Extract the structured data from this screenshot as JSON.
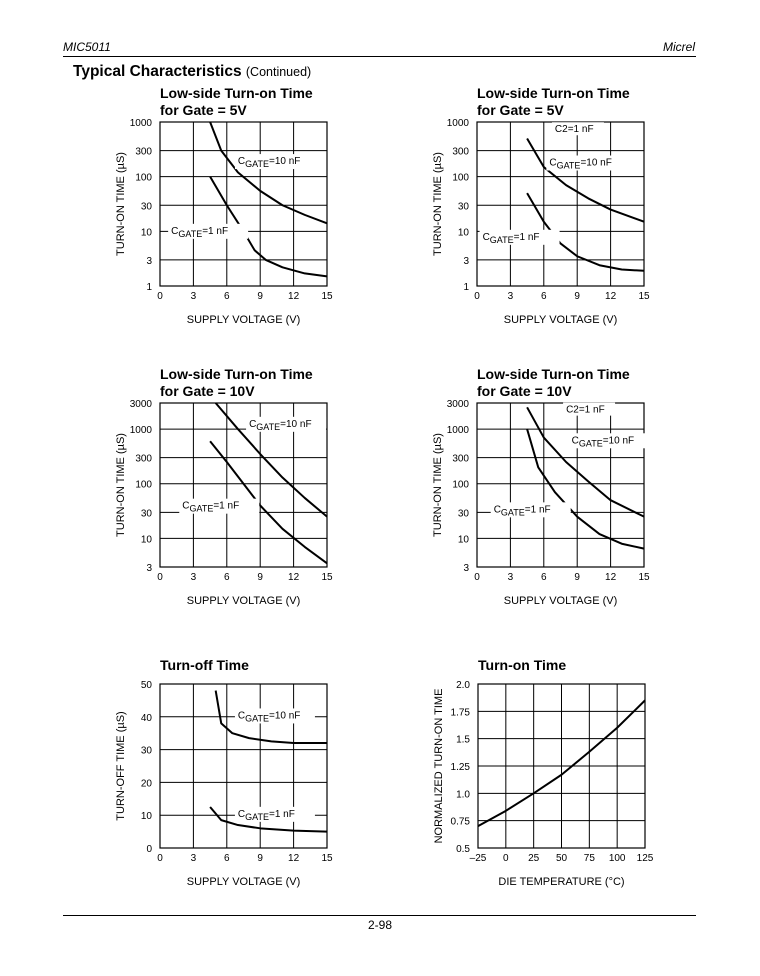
{
  "header": {
    "left": "MIC5011",
    "right": "Micrel"
  },
  "section": {
    "title": "Typical Characteristics",
    "continued": "(Continued)"
  },
  "footer": {
    "page": "2-98"
  },
  "chart_data": [
    {
      "type": "line",
      "title": [
        "Low-side Turn-on Time",
        "for Gate = 5V"
      ],
      "xlabel": "SUPPLY VOLTAGE (V)",
      "ylabel": "TURN-ON TIME (µS)",
      "yscale": "log",
      "xlim": [
        0,
        15
      ],
      "ylim": [
        1,
        1000
      ],
      "xticks": [
        0,
        3,
        6,
        9,
        12,
        15
      ],
      "yticks": [
        1,
        3,
        10,
        30,
        100,
        300,
        1000
      ],
      "xtick_labels": [
        "0",
        "3",
        "6",
        "9",
        "12",
        "15"
      ],
      "ytick_labels": [
        "1",
        "3",
        "10",
        "30",
        "100",
        "300",
        "1000"
      ],
      "grid": true,
      "series": [
        {
          "name": "CGATE=10 nF",
          "name_sub": "GATE",
          "name_pre": "C",
          "name_post": "=10 nF",
          "x": [
            4.5,
            5.5,
            7,
            9,
            11,
            13,
            15
          ],
          "y": [
            1000,
            300,
            120,
            55,
            30,
            20,
            14
          ]
        },
        {
          "name": "CGATE=1 nF",
          "name_sub": "GATE",
          "name_pre": "C",
          "name_post": "=1 nF",
          "x": [
            4.5,
            6,
            7.5,
            8.5,
            9.5,
            11,
            13,
            15
          ],
          "y": [
            100,
            30,
            10,
            4.5,
            3,
            2.2,
            1.7,
            1.5
          ]
        }
      ],
      "annotations": [
        {
          "series": 0,
          "x": 7,
          "y": 170,
          "pre": "C",
          "sub": "GATE",
          "post": "=10 nF",
          "leader": [
            6.2,
            170
          ]
        },
        {
          "series": 1,
          "x": 1,
          "y": 9,
          "pre": "C",
          "sub": "GATE",
          "post": "=1 nF",
          "leader": [
            0.3,
            9
          ]
        }
      ]
    },
    {
      "type": "line",
      "title": [
        "Low-side Turn-on Time",
        "for Gate = 5V"
      ],
      "xlabel": "SUPPLY VOLTAGE (V)",
      "ylabel": "TURN-ON TIME (µS)",
      "yscale": "log",
      "xlim": [
        0,
        15
      ],
      "ylim": [
        1,
        1000
      ],
      "xticks": [
        0,
        3,
        6,
        9,
        12,
        15
      ],
      "yticks": [
        1,
        3,
        10,
        30,
        100,
        300,
        1000
      ],
      "xtick_labels": [
        "0",
        "3",
        "6",
        "9",
        "12",
        "15"
      ],
      "ytick_labels": [
        "1",
        "3",
        "10",
        "30",
        "100",
        "300",
        "1000"
      ],
      "grid": true,
      "series": [
        {
          "name": "CGATE=10 nF",
          "name_sub": "GATE",
          "name_pre": "C",
          "name_post": "=10 nF",
          "x": [
            4.5,
            6,
            8,
            10,
            12,
            15
          ],
          "y": [
            500,
            150,
            70,
            40,
            25,
            15
          ]
        },
        {
          "name": "CGATE=1 nF",
          "name_sub": "GATE",
          "name_pre": "C",
          "name_post": "=1 nF",
          "x": [
            4.5,
            6,
            7.5,
            9,
            11,
            13,
            15
          ],
          "y": [
            50,
            15,
            6,
            3.5,
            2.4,
            2.0,
            1.9
          ]
        }
      ],
      "annotations": [
        {
          "label": "C2=1 nF",
          "x": 7,
          "y": 650
        },
        {
          "series": 0,
          "x": 6.5,
          "y": 160,
          "pre": "C",
          "sub": "GATE",
          "post": "=10 nF"
        },
        {
          "series": 1,
          "x": 0.5,
          "y": 7,
          "pre": "C",
          "sub": "GATE",
          "post": "=1 nF"
        }
      ]
    },
    {
      "type": "line",
      "title": [
        "Low-side Turn-on Time",
        "for Gate = 10V"
      ],
      "xlabel": "SUPPLY VOLTAGE (V)",
      "ylabel": "TURN-ON TIME (µS)",
      "yscale": "log",
      "xlim": [
        0,
        15
      ],
      "ylim": [
        3,
        3000
      ],
      "xticks": [
        0,
        3,
        6,
        9,
        12,
        15
      ],
      "yticks": [
        3,
        10,
        30,
        100,
        300,
        1000,
        3000
      ],
      "xtick_labels": [
        "0",
        "3",
        "6",
        "9",
        "12",
        "15"
      ],
      "ytick_labels": [
        "3",
        "10",
        "30",
        "100",
        "300",
        "1000",
        "3000"
      ],
      "grid": true,
      "series": [
        {
          "name": "CGATE=10 nF",
          "name_sub": "GATE",
          "name_pre": "C",
          "name_post": "=10 nF",
          "x": [
            5,
            7,
            9,
            11,
            13,
            15
          ],
          "y": [
            3000,
            1000,
            350,
            130,
            55,
            25
          ]
        },
        {
          "name": "CGATE=1 nF",
          "name_sub": "GATE",
          "name_pre": "C",
          "name_post": "=1 nF",
          "x": [
            4.5,
            6,
            7.5,
            9,
            11,
            13,
            15
          ],
          "y": [
            600,
            250,
            100,
            40,
            15,
            7,
            3.5
          ]
        }
      ],
      "annotations": [
        {
          "series": 0,
          "x": 8,
          "y": 1100,
          "pre": "C",
          "sub": "GATE",
          "post": "=10 nF"
        },
        {
          "series": 1,
          "x": 2,
          "y": 35,
          "pre": "C",
          "sub": "GATE",
          "post": "=1 nF"
        }
      ]
    },
    {
      "type": "line",
      "title": [
        "Low-side Turn-on Time",
        "for Gate = 10V"
      ],
      "xlabel": "SUPPLY VOLTAGE (V)",
      "ylabel": "TURN-ON TIME (µS)",
      "yscale": "log",
      "xlim": [
        0,
        15
      ],
      "ylim": [
        3,
        3000
      ],
      "xticks": [
        0,
        3,
        6,
        9,
        12,
        15
      ],
      "yticks": [
        3,
        10,
        30,
        100,
        300,
        1000,
        3000
      ],
      "xtick_labels": [
        "0",
        "3",
        "6",
        "9",
        "12",
        "15"
      ],
      "ytick_labels": [
        "3",
        "10",
        "30",
        "100",
        "300",
        "1000",
        "3000"
      ],
      "grid": true,
      "series": [
        {
          "name": "CGATE=10 nF",
          "name_sub": "GATE",
          "name_pre": "C",
          "name_post": "=10 nF",
          "x": [
            4.5,
            6,
            8,
            10,
            12,
            15
          ],
          "y": [
            2500,
            700,
            250,
            110,
            50,
            25
          ]
        },
        {
          "name": "CGATE=1 nF",
          "name_sub": "GATE",
          "name_pre": "C",
          "name_post": "=1 nF",
          "x": [
            4.5,
            5.5,
            7,
            9,
            11,
            13,
            15
          ],
          "y": [
            1000,
            200,
            70,
            25,
            12,
            8,
            6.5
          ]
        }
      ],
      "annotations": [
        {
          "label": "C2=1 nF",
          "x": 8,
          "y": 2000
        },
        {
          "series": 0,
          "x": 8.5,
          "y": 550,
          "pre": "C",
          "sub": "GATE",
          "post": "=10 nF"
        },
        {
          "series": 1,
          "x": 1.5,
          "y": 30,
          "pre": "C",
          "sub": "GATE",
          "post": "=1 nF"
        }
      ]
    },
    {
      "type": "line",
      "title": [
        "Turn-off Time"
      ],
      "xlabel": "SUPPLY VOLTAGE (V)",
      "ylabel": "TURN-OFF TIME (µS)",
      "yscale": "linear",
      "xlim": [
        0,
        15
      ],
      "ylim": [
        0,
        50
      ],
      "xticks": [
        0,
        3,
        6,
        9,
        12,
        15
      ],
      "yticks": [
        0,
        10,
        20,
        30,
        40,
        50
      ],
      "xtick_labels": [
        "0",
        "3",
        "6",
        "9",
        "12",
        "15"
      ],
      "ytick_labels": [
        "0",
        "10",
        "20",
        "30",
        "40",
        "50"
      ],
      "grid": true,
      "series": [
        {
          "name": "CGATE=10 nF",
          "name_sub": "GATE",
          "name_pre": "C",
          "name_post": "=10 nF",
          "x": [
            5,
            5.5,
            6.5,
            8,
            10,
            12,
            15
          ],
          "y": [
            48,
            38,
            35,
            33.5,
            32.5,
            32,
            32
          ]
        },
        {
          "name": "CGATE=1 nF",
          "name_sub": "GATE",
          "name_pre": "C",
          "name_post": "=1 nF",
          "x": [
            4.5,
            5.5,
            7,
            9,
            12,
            15
          ],
          "y": [
            12.5,
            8.5,
            7.0,
            6.0,
            5.3,
            5.0
          ]
        }
      ],
      "annotations": [
        {
          "series": 0,
          "x": 7,
          "y": 39.5,
          "pre": "C",
          "sub": "GATE",
          "post": "=10 nF"
        },
        {
          "series": 1,
          "x": 7,
          "y": 9.5,
          "pre": "C",
          "sub": "GATE",
          "post": "=1 nF"
        }
      ]
    },
    {
      "type": "line",
      "title": [
        "Turn-on Time"
      ],
      "xlabel": "DIE TEMPERATURE (°C)",
      "ylabel": "NORMALIZED TURN-ON TIME",
      "yscale": "linear",
      "xlim": [
        -25,
        125
      ],
      "ylim": [
        0.5,
        2.0
      ],
      "xticks": [
        -25,
        0,
        25,
        50,
        75,
        100,
        125
      ],
      "yticks": [
        0.5,
        0.75,
        1.0,
        1.25,
        1.5,
        1.75,
        2.0
      ],
      "xtick_labels": [
        "–25",
        "0",
        "25",
        "50",
        "75",
        "100",
        "125"
      ],
      "ytick_labels": [
        "0.5",
        "0.75",
        "1.0",
        "1.25",
        "1.5",
        "1.75",
        "2.0"
      ],
      "grid": true,
      "series": [
        {
          "x": [
            -25,
            0,
            25,
            50,
            75,
            100,
            125
          ],
          "y": [
            0.7,
            0.84,
            1.0,
            1.17,
            1.38,
            1.6,
            1.85
          ]
        }
      ],
      "annotations": []
    }
  ]
}
